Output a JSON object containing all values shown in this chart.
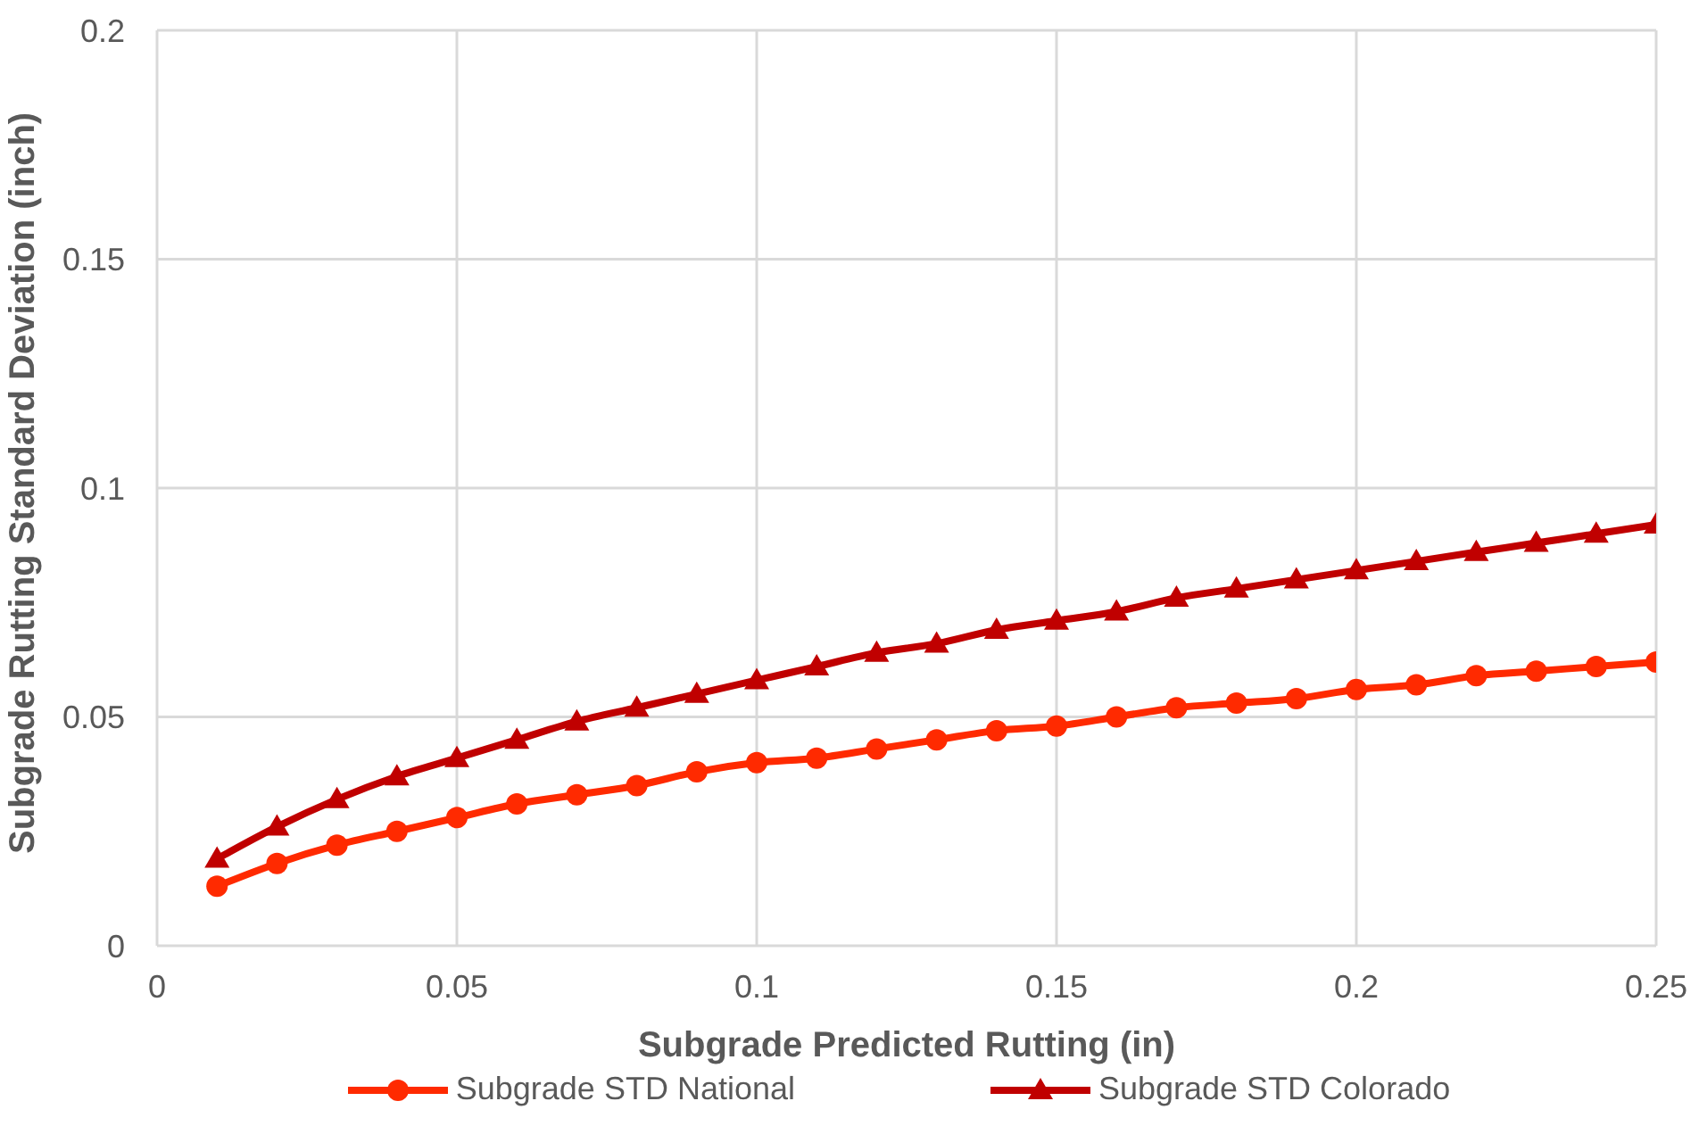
{
  "chart_data": {
    "type": "line",
    "xlabel": "Subgrade Predicted Rutting (in)",
    "ylabel": "Subgrade Rutting Standard Deviation (inch)",
    "x": [
      0.01,
      0.02,
      0.03,
      0.04,
      0.05,
      0.06,
      0.07,
      0.08,
      0.09,
      0.1,
      0.11,
      0.12,
      0.13,
      0.14,
      0.15,
      0.16,
      0.17,
      0.18,
      0.19,
      0.2,
      0.21,
      0.22,
      0.23,
      0.24,
      0.25
    ],
    "series": [
      {
        "name": "Subgrade STD National",
        "color": "#ff2a00",
        "marker": "circle",
        "values": [
          0.013,
          0.018,
          0.022,
          0.025,
          0.028,
          0.031,
          0.033,
          0.035,
          0.038,
          0.04,
          0.041,
          0.043,
          0.045,
          0.047,
          0.048,
          0.05,
          0.052,
          0.053,
          0.054,
          0.056,
          0.057,
          0.059,
          0.06,
          0.061,
          0.062
        ]
      },
      {
        "name": "Subgrade STD Colorado",
        "color": "#c00000",
        "marker": "triangle",
        "values": [
          0.019,
          0.026,
          0.032,
          0.037,
          0.041,
          0.045,
          0.049,
          0.052,
          0.055,
          0.058,
          0.061,
          0.064,
          0.066,
          0.069,
          0.071,
          0.073,
          0.076,
          0.078,
          0.08,
          0.082,
          0.084,
          0.086,
          0.088,
          0.09,
          0.092
        ]
      }
    ],
    "xlim": [
      0,
      0.25
    ],
    "xticks": [
      0,
      0.05,
      0.1,
      0.15,
      0.2,
      0.25
    ],
    "ylim": [
      0,
      0.2
    ],
    "yticks": [
      0,
      0.05,
      0.1,
      0.15,
      0.2
    ],
    "grid": true,
    "legend": "bottom",
    "line_style": "solid"
  }
}
